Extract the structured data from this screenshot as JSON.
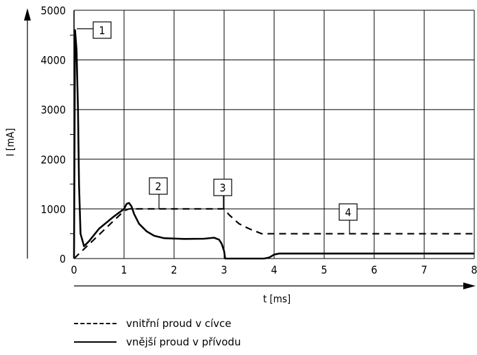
{
  "chart_data": {
    "type": "line",
    "title": "",
    "xlabel": "t [ms]",
    "ylabel": "I [mA]",
    "xlim": [
      0,
      8
    ],
    "ylim": [
      0,
      5000
    ],
    "xticks": [
      0,
      1,
      2,
      3,
      4,
      5,
      6,
      7,
      8
    ],
    "yticks": [
      0,
      1000,
      2000,
      3000,
      4000,
      5000
    ],
    "grid": true,
    "legend_position": "bottom",
    "series": [
      {
        "name": "vnitřní proud v cívce",
        "style": "dashed",
        "x": [
          0,
          1.0,
          1.1,
          3.0,
          3.1,
          3.3,
          3.5,
          3.7,
          3.75,
          8.0
        ],
        "y": [
          0,
          960,
          1000,
          1000,
          880,
          700,
          600,
          520,
          500,
          500
        ]
      },
      {
        "name": "vnější proud v přívodu",
        "style": "solid",
        "x": [
          0,
          0.02,
          0.05,
          0.08,
          0.1,
          0.13,
          0.2,
          0.3,
          0.5,
          0.8,
          1.0,
          1.05,
          1.1,
          1.15,
          1.2,
          1.3,
          1.45,
          1.6,
          1.8,
          2.2,
          2.6,
          2.8,
          2.9,
          2.95,
          3.0,
          3.02,
          3.05,
          3.2,
          3.8,
          3.9,
          4.0,
          4.1,
          4.3,
          5,
          8
        ],
        "y": [
          0,
          4600,
          4200,
          3000,
          1500,
          500,
          250,
          350,
          600,
          850,
          1000,
          1100,
          1120,
          1050,
          900,
          700,
          550,
          460,
          410,
          395,
          400,
          420,
          380,
          300,
          150,
          0,
          0,
          0,
          0,
          20,
          80,
          100,
          100,
          100,
          100
        ]
      }
    ],
    "annotations": [
      {
        "label": "1",
        "x": 0.02,
        "y": 4600
      },
      {
        "label": "2",
        "x": 1.7,
        "y": 1000
      },
      {
        "label": "3",
        "x": 3.0,
        "y": 1000
      },
      {
        "label": "4",
        "x": 5.5,
        "y": 500
      }
    ]
  },
  "legend": {
    "dashed_label": "vnitřní proud v cívce",
    "solid_label": "vnější proud v přívodu"
  }
}
